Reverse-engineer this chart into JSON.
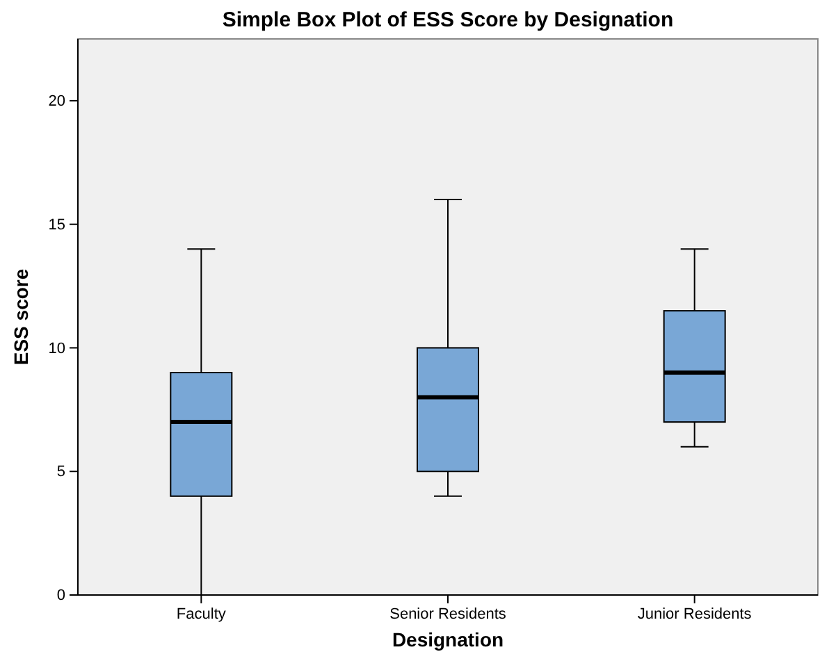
{
  "chart_data": {
    "type": "box",
    "title": "Simple Box Plot of ESS Score by Designation",
    "xlabel": "Designation",
    "ylabel": "ESS score",
    "categories": [
      "Faculty",
      "Senior Residents",
      "Junior Residents"
    ],
    "boxes": [
      {
        "low": 0,
        "q1": 4,
        "median": 7,
        "q3": 9,
        "high": 14
      },
      {
        "low": 4,
        "q1": 5,
        "median": 8,
        "q3": 10,
        "high": 16
      },
      {
        "low": 6,
        "q1": 7,
        "median": 9,
        "q3": 11.5,
        "high": 14
      }
    ],
    "color": "#79a7d6",
    "ylim": [
      0,
      22.5
    ],
    "yticks": [
      0,
      5,
      10,
      15,
      20
    ],
    "grid": false
  }
}
